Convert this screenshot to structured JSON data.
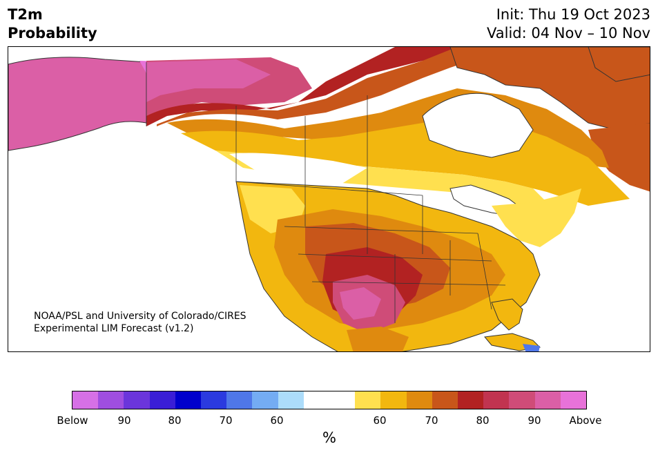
{
  "title": {
    "line1": "T2m",
    "line2": "Probability"
  },
  "header_right": {
    "init": "Init: Thu 19 Oct 2023",
    "valid": "Valid: 04 Nov – 10 Nov"
  },
  "credit": {
    "line1": "NOAA/PSL and University of Colorado/CIRES",
    "line2": "Experimental LIM Forecast (v1.2)"
  },
  "colorbar": {
    "colors": [
      "#d670e6",
      "#9f4ee0",
      "#6b35db",
      "#3a1ed6",
      "#0000cc",
      "#2b3adf",
      "#4f77e8",
      "#74acf3",
      "#acdcfa",
      "#ffffff",
      "#ffffff",
      "#ffe04f",
      "#f2b70f",
      "#df8a0f",
      "#c8561a",
      "#b22222",
      "#c13450",
      "#cf4c78",
      "#db5fa6",
      "#e872d9"
    ],
    "tick_labels": [
      "Below",
      "90",
      "80",
      "70",
      "60",
      "60",
      "70",
      "80",
      "90",
      "Above"
    ],
    "units": "%"
  },
  "map": {
    "land_color": "#ffffff",
    "water_color": "#ffffff",
    "boundary_color": "#333333"
  }
}
